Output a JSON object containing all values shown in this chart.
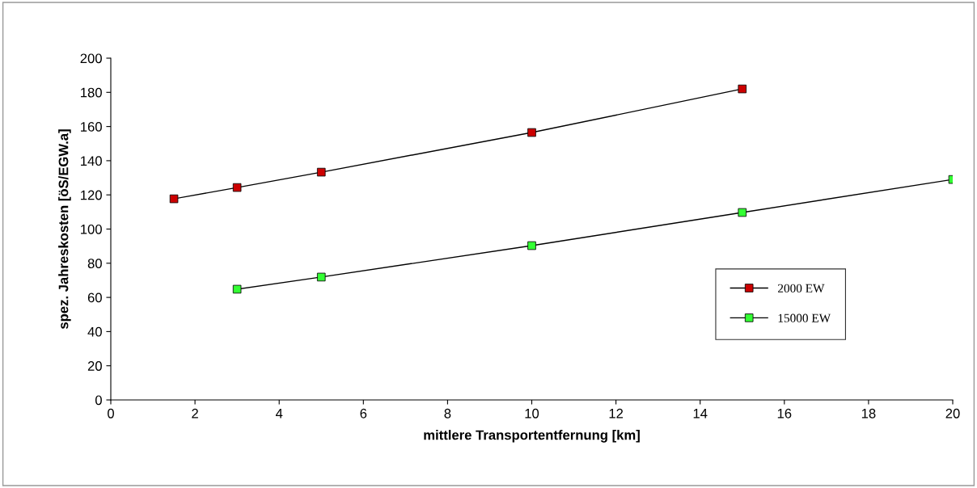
{
  "chart_data": {
    "type": "line",
    "xlabel": "mittlere Transportentfernung [km]",
    "ylabel": "spez. Jahreskosten [öS/EGW.a]",
    "xlim": [
      0,
      20
    ],
    "xticks": [
      0,
      2,
      4,
      6,
      8,
      10,
      12,
      14,
      16,
      18,
      20
    ],
    "ylim": [
      0,
      200
    ],
    "yticks": [
      0,
      20,
      40,
      60,
      80,
      100,
      120,
      140,
      160,
      180,
      200
    ],
    "grid": false,
    "legend": "right",
    "marker": "square",
    "line_style": "solid",
    "series": [
      {
        "name": "2000 EW",
        "color": "#cc0000",
        "x": [
          1.5,
          3,
          5,
          10,
          15
        ],
        "values": [
          117.7,
          124.3,
          133.3,
          156.5,
          182
        ]
      },
      {
        "name": "15000 EW",
        "color": "#33ff33",
        "x": [
          3,
          5,
          10,
          15,
          20
        ],
        "values": [
          64.8,
          71.9,
          90.3,
          109.7,
          129
        ]
      }
    ]
  }
}
